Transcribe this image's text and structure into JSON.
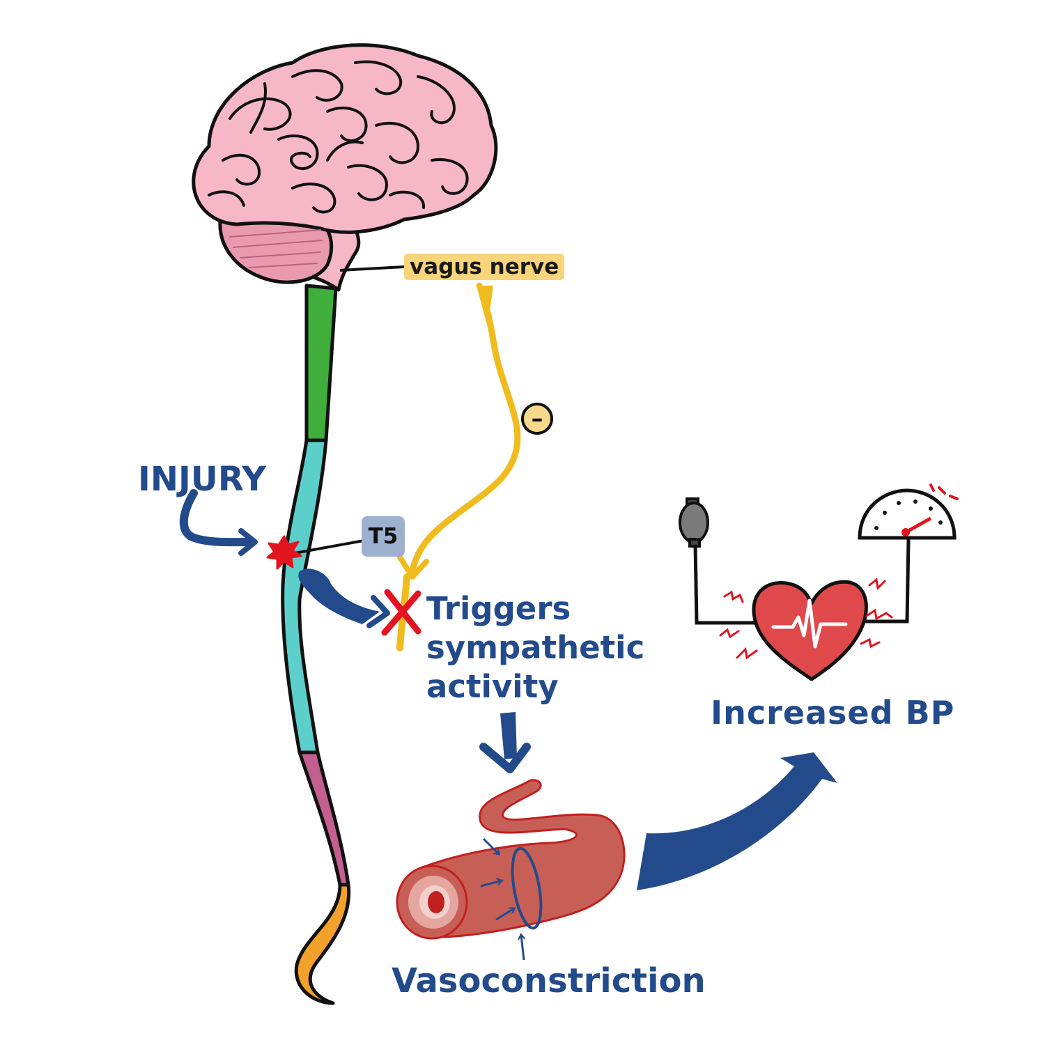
{
  "labels": {
    "vagus_nerve": "vagus  nerve",
    "minus_sign": "–",
    "injury": "INJURY",
    "t5": "T5",
    "triggers_line1": "Triggers",
    "triggers_line2": "sympathetic",
    "triggers_line3": "activity",
    "increased_bp": "Increased  BP",
    "vasoconstriction": "Vasoconstriction"
  },
  "colors": {
    "arrow_blue": "#234b8c",
    "brain_pink": "#f6b7c7",
    "cerebellum_pink": "#e99aae",
    "cord_green": "#3fae3a",
    "cord_teal": "#5ccfca",
    "cord_magenta": "#c3608f",
    "cord_orange": "#f2a12a",
    "vagus_yellow": "#f0bb1d",
    "injury_red": "#e2141f",
    "vessel_red": "#c85f57",
    "heart_red": "#e0494b"
  },
  "icons": [
    "brain-icon",
    "spinal-cord-icon",
    "injury-star-icon",
    "block-x-icon",
    "blood-vessel-icon",
    "heart-icon",
    "pressure-gauge-icon",
    "bulb-pump-icon"
  ]
}
